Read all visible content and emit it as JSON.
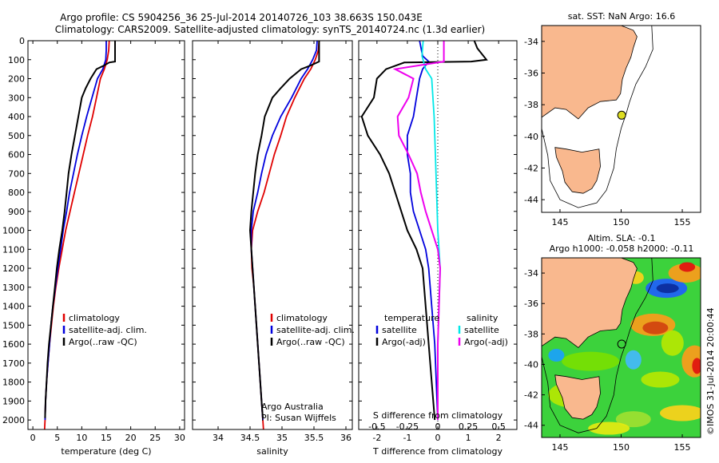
{
  "title_line1": "Argo profile: CS 5904256_36 25-Jul-2014 20140726_103 38.663S 150.043E",
  "title_line2": "Climatology: CARS2009. Satellite-adjusted climatology: synTS_20140724.nc (1.3d earlier)",
  "side_label": "©IMOS 31-Jul-2014 20:00:44",
  "colors": {
    "climatology": "#e00000",
    "satellite": "#0000dd",
    "argo": "#000000",
    "sal_sat": "#00e8e8",
    "sal_argo": "#ee00ee",
    "land": "#f9b88e"
  },
  "chart_data": [
    {
      "type": "line",
      "xlabel": "temperature (deg C)",
      "ylabel": "",
      "xlim": [
        -1,
        31
      ],
      "ylim": [
        2050,
        0
      ],
      "xticks": [
        "0",
        "5",
        "10",
        "15",
        "20",
        "25",
        "30"
      ],
      "yticks": [
        "0",
        "100",
        "200",
        "300",
        "400",
        "500",
        "600",
        "700",
        "800",
        "900",
        "1000",
        "1100",
        "1200",
        "1300",
        "1400",
        "1500",
        "1600",
        "1700",
        "1800",
        "1900",
        "2000"
      ],
      "legend": [
        "climatology",
        "satellite-adj. clim.",
        "Argo(..raw -QC)"
      ],
      "series": [
        {
          "name": "climatology",
          "points": [
            [
              15.6,
              0
            ],
            [
              15.5,
              50
            ],
            [
              15.2,
              100
            ],
            [
              14.6,
              150
            ],
            [
              13.8,
              200
            ],
            [
              13.0,
              300
            ],
            [
              12.2,
              400
            ],
            [
              11.2,
              500
            ],
            [
              10.3,
              600
            ],
            [
              9.4,
              700
            ],
            [
              8.5,
              800
            ],
            [
              7.6,
              900
            ],
            [
              6.7,
              1000
            ],
            [
              6.0,
              1100
            ],
            [
              5.3,
              1200
            ],
            [
              4.7,
              1300
            ],
            [
              4.2,
              1400
            ],
            [
              3.8,
              1500
            ],
            [
              3.4,
              1600
            ],
            [
              3.1,
              1700
            ],
            [
              2.8,
              1800
            ],
            [
              2.6,
              1900
            ],
            [
              2.5,
              2000
            ],
            [
              2.4,
              2050
            ]
          ]
        },
        {
          "name": "satellite-adj. clim.",
          "points": [
            [
              15.0,
              0
            ],
            [
              15.0,
              50
            ],
            [
              14.9,
              100
            ],
            [
              14.3,
              150
            ],
            [
              13.2,
              200
            ],
            [
              12.1,
              300
            ],
            [
              11.0,
              400
            ],
            [
              10.0,
              500
            ],
            [
              9.1,
              600
            ],
            [
              8.3,
              700
            ],
            [
              7.5,
              800
            ],
            [
              6.9,
              900
            ],
            [
              6.2,
              1000
            ],
            [
              5.7,
              1100
            ],
            [
              5.1,
              1200
            ],
            [
              4.6,
              1300
            ],
            [
              4.1,
              1400
            ],
            [
              3.7,
              1500
            ],
            [
              3.4,
              1600
            ],
            [
              3.1,
              1700
            ],
            [
              2.8,
              1800
            ],
            [
              2.6,
              1900
            ],
            [
              2.5,
              2000
            ]
          ]
        },
        {
          "name": "Argo(..raw -QC)",
          "points": [
            [
              16.8,
              0
            ],
            [
              16.8,
              110
            ],
            [
              15.6,
              115
            ],
            [
              14.6,
              130
            ],
            [
              13.0,
              150
            ],
            [
              11.8,
              200
            ],
            [
              10.8,
              250
            ],
            [
              10.0,
              300
            ],
            [
              9.3,
              400
            ],
            [
              8.6,
              500
            ],
            [
              7.9,
              600
            ],
            [
              7.3,
              700
            ],
            [
              6.9,
              800
            ],
            [
              6.5,
              900
            ],
            [
              6.0,
              1000
            ],
            [
              5.4,
              1100
            ],
            [
              4.9,
              1200
            ],
            [
              4.5,
              1300
            ],
            [
              4.1,
              1400
            ],
            [
              3.7,
              1500
            ],
            [
              3.3,
              1600
            ],
            [
              3.0,
              1700
            ],
            [
              2.8,
              1800
            ],
            [
              2.6,
              1900
            ],
            [
              2.5,
              1990
            ]
          ]
        }
      ]
    },
    {
      "type": "line",
      "xlabel": "salinity",
      "ylabel": "",
      "xlim": [
        33.6,
        36.1
      ],
      "ylim": [
        2050,
        0
      ],
      "xticks": [
        "34",
        "34.5",
        "35",
        "35.5",
        "36"
      ],
      "legend": [
        "climatology",
        "satellite-adj. clim.",
        "Argo(..raw -QC)"
      ],
      "annotation": [
        "Argo Australia",
        "PI: Susan Wijffels"
      ],
      "series": [
        {
          "name": "climatology",
          "points": [
            [
              35.58,
              0
            ],
            [
              35.57,
              50
            ],
            [
              35.52,
              100
            ],
            [
              35.45,
              150
            ],
            [
              35.35,
              200
            ],
            [
              35.2,
              300
            ],
            [
              35.07,
              400
            ],
            [
              34.98,
              500
            ],
            [
              34.88,
              600
            ],
            [
              34.8,
              700
            ],
            [
              34.72,
              800
            ],
            [
              34.62,
              900
            ],
            [
              34.54,
              1000
            ],
            [
              34.52,
              1100
            ],
            [
              34.53,
              1200
            ],
            [
              34.56,
              1300
            ],
            [
              34.58,
              1400
            ],
            [
              34.6,
              1500
            ],
            [
              34.62,
              1600
            ],
            [
              34.64,
              1700
            ],
            [
              34.66,
              1800
            ],
            [
              34.68,
              1900
            ],
            [
              34.7,
              2000
            ],
            [
              34.71,
              2050
            ]
          ]
        },
        {
          "name": "satellite-adj. clim.",
          "points": [
            [
              35.55,
              0
            ],
            [
              35.54,
              50
            ],
            [
              35.48,
              100
            ],
            [
              35.4,
              150
            ],
            [
              35.3,
              200
            ],
            [
              35.15,
              300
            ],
            [
              34.98,
              400
            ],
            [
              34.85,
              500
            ],
            [
              34.75,
              600
            ],
            [
              34.68,
              700
            ],
            [
              34.62,
              800
            ],
            [
              34.55,
              900
            ],
            [
              34.52,
              1000
            ],
            [
              34.52,
              1100
            ],
            [
              34.54,
              1200
            ],
            [
              34.56,
              1300
            ],
            [
              34.58,
              1400
            ],
            [
              34.6,
              1500
            ],
            [
              34.62,
              1600
            ],
            [
              34.64,
              1700
            ],
            [
              34.66,
              1800
            ],
            [
              34.68,
              1900
            ],
            [
              34.7,
              2000
            ]
          ]
        },
        {
          "name": "Argo(..raw -QC)",
          "points": [
            [
              35.58,
              0
            ],
            [
              35.58,
              110
            ],
            [
              35.45,
              130
            ],
            [
              35.3,
              150
            ],
            [
              35.12,
              200
            ],
            [
              34.98,
              250
            ],
            [
              34.85,
              300
            ],
            [
              34.73,
              400
            ],
            [
              34.68,
              500
            ],
            [
              34.62,
              600
            ],
            [
              34.58,
              700
            ],
            [
              34.55,
              800
            ],
            [
              34.52,
              900
            ],
            [
              34.5,
              1000
            ],
            [
              34.52,
              1100
            ],
            [
              34.54,
              1200
            ],
            [
              34.56,
              1300
            ],
            [
              34.58,
              1400
            ],
            [
              34.6,
              1500
            ],
            [
              34.62,
              1600
            ],
            [
              34.64,
              1700
            ],
            [
              34.66,
              1800
            ],
            [
              34.68,
              1900
            ],
            [
              34.7,
              1990
            ]
          ]
        }
      ]
    },
    {
      "type": "line",
      "xlabel": "T difference from climatology",
      "x2label": "S difference from climatology",
      "xlim": [
        -2.6,
        2.6
      ],
      "ylim": [
        2050,
        0
      ],
      "xticks": [
        "-2",
        "-1",
        "0",
        "1",
        "2"
      ],
      "x2ticks": [
        "-0.5",
        "-0.25",
        "0",
        "0.25",
        "0.5"
      ],
      "legend_titles": [
        "temperature",
        "salinity"
      ],
      "legend": [
        "satellite",
        "Argo(-adj)",
        "satellite",
        "Argo(-adj)"
      ],
      "series": [
        {
          "name": "satellite",
          "group": "temperature",
          "points": [
            [
              -0.6,
              0
            ],
            [
              -0.5,
              80
            ],
            [
              -0.3,
              110
            ],
            [
              -0.5,
              150
            ],
            [
              -0.6,
              200
            ],
            [
              -0.7,
              300
            ],
            [
              -0.8,
              400
            ],
            [
              -1.0,
              500
            ],
            [
              -1.0,
              600
            ],
            [
              -0.9,
              700
            ],
            [
              -0.9,
              800
            ],
            [
              -0.8,
              900
            ],
            [
              -0.6,
              1000
            ],
            [
              -0.4,
              1100
            ],
            [
              -0.3,
              1200
            ],
            [
              -0.2,
              1400
            ],
            [
              -0.1,
              1600
            ],
            [
              -0.05,
              1800
            ],
            [
              0,
              2000
            ]
          ]
        },
        {
          "name": "Argo(-adj)",
          "group": "temperature",
          "points": [
            [
              1.2,
              0
            ],
            [
              1.3,
              40
            ],
            [
              1.6,
              100
            ],
            [
              1.1,
              110
            ],
            [
              -1.1,
              115
            ],
            [
              -1.7,
              150
            ],
            [
              -2.0,
              200
            ],
            [
              -2.1,
              300
            ],
            [
              -2.5,
              400
            ],
            [
              -2.3,
              500
            ],
            [
              -1.9,
              600
            ],
            [
              -1.6,
              700
            ],
            [
              -1.4,
              800
            ],
            [
              -1.2,
              900
            ],
            [
              -1.0,
              1000
            ],
            [
              -0.7,
              1100
            ],
            [
              -0.5,
              1200
            ],
            [
              -0.4,
              1400
            ],
            [
              -0.3,
              1600
            ],
            [
              -0.2,
              1800
            ],
            [
              -0.1,
              2000
            ]
          ]
        },
        {
          "name": "satellite",
          "group": "salinity",
          "points": [
            [
              -0.12,
              0
            ],
            [
              -0.13,
              80
            ],
            [
              -0.1,
              150
            ],
            [
              -0.05,
              200
            ],
            [
              -0.03,
              400
            ],
            [
              -0.02,
              600
            ],
            [
              -0.01,
              800
            ],
            [
              0,
              1000
            ],
            [
              0.02,
              1200
            ],
            [
              0.01,
              1400
            ],
            [
              0,
              1600
            ],
            [
              0,
              1800
            ],
            [
              0,
              2000
            ]
          ]
        },
        {
          "name": "Argo(-adj)",
          "group": "salinity",
          "points": [
            [
              0.05,
              0
            ],
            [
              0.05,
              110
            ],
            [
              -0.35,
              150
            ],
            [
              -0.2,
              200
            ],
            [
              -0.24,
              300
            ],
            [
              -0.33,
              400
            ],
            [
              -0.32,
              500
            ],
            [
              -0.24,
              600
            ],
            [
              -0.17,
              700
            ],
            [
              -0.14,
              800
            ],
            [
              -0.1,
              900
            ],
            [
              -0.05,
              1000
            ],
            [
              0,
              1100
            ],
            [
              0.02,
              1200
            ],
            [
              0.01,
              1400
            ],
            [
              0,
              1600
            ],
            [
              0,
              1800
            ],
            [
              0,
              2000
            ]
          ]
        }
      ]
    },
    {
      "type": "map",
      "title": "sat. SST: NaN Argo: 16.6",
      "xlim": [
        143.5,
        156.5
      ],
      "ylim": [
        -44.8,
        -33
      ],
      "xticks": [
        "145",
        "150",
        "155"
      ],
      "yticks": [
        "-34",
        "-36",
        "-38",
        "-40",
        "-42",
        "-44"
      ],
      "marker": {
        "lon": 150.043,
        "lat": -38.663,
        "fill": "#dddd22"
      }
    },
    {
      "type": "heatmap",
      "title_line1": "Altim. SLA: -0.1",
      "title_line2": "Argo h1000: -0.058 h2000: -0.11",
      "xlim": [
        143.5,
        156.5
      ],
      "ylim": [
        -44.8,
        -33
      ],
      "xticks": [
        "145",
        "150",
        "155"
      ],
      "yticks": [
        "-34",
        "-36",
        "-38",
        "-40",
        "-42",
        "-44"
      ],
      "marker": {
        "lon": 150.043,
        "lat": -38.663
      }
    }
  ]
}
